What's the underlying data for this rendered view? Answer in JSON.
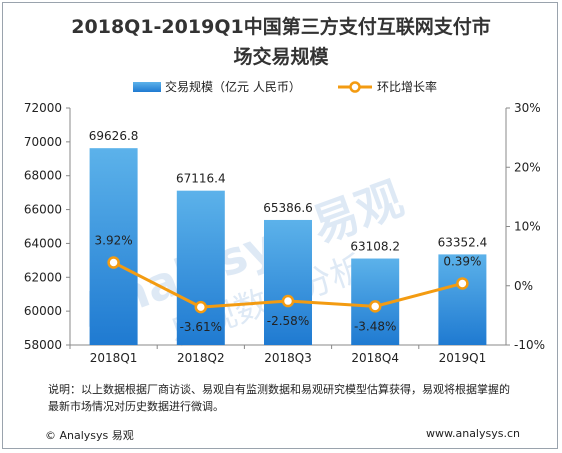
{
  "title_line1": "2018Q1-2019Q1中国第三方支付互联网支付市",
  "title_line2": "场交易规模",
  "watermark": {
    "brand": "Analysys 易观",
    "sub": "易观数据分析"
  },
  "note": "说明：以上数据根据厂商访谈、易观自有监测数据和易观研究模型估算获得，易观将根据掌握的最新市场情况对历史数据进行微调。",
  "footer": {
    "left": "© Analysys 易观",
    "right": "www.analysys.cn"
  },
  "colors": {
    "bar_top": "#5cb2ea",
    "bar_bottom": "#1f7ad1",
    "line": "#f39b11",
    "axis": "#888888"
  },
  "chart_data": {
    "type": "bar+line",
    "categories": [
      "2018Q1",
      "2018Q2",
      "2018Q3",
      "2018Q4",
      "2019Q1"
    ],
    "series": [
      {
        "name": "交易规模（亿元 人民币）",
        "type": "bar",
        "axis": "left",
        "values": [
          69626.8,
          67116.4,
          65386.6,
          63108.2,
          63352.4
        ],
        "labels": [
          "69626.8",
          "67116.4",
          "65386.6",
          "63108.2",
          "63352.4"
        ]
      },
      {
        "name": "环比增长率",
        "type": "line",
        "axis": "right",
        "values": [
          3.92,
          -3.61,
          -2.58,
          -3.48,
          0.39
        ],
        "labels": [
          "3.92%",
          "-3.61%",
          "-2.58%",
          "-3.48%",
          "0.39%"
        ]
      }
    ],
    "y_left": {
      "min": 58000,
      "max": 72000,
      "step": 2000,
      "ticks": [
        "58000",
        "60000",
        "62000",
        "64000",
        "66000",
        "68000",
        "70000",
        "72000"
      ]
    },
    "y_right": {
      "min": -10,
      "max": 30,
      "step": 10,
      "ticks": [
        "-10%",
        "0%",
        "10%",
        "20%",
        "30%"
      ]
    },
    "grid": false,
    "legend": "top-center"
  }
}
